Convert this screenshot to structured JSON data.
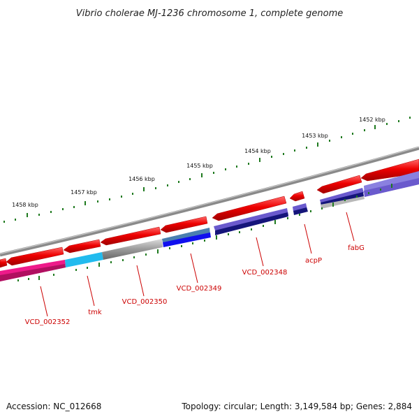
{
  "title": "Vibrio cholerae MJ-1236 chromosome 1, complete genome",
  "scale_labels": [
    "1458 kbp",
    "1457 kbp",
    "1456 kbp",
    "1455 kbp",
    "1454 kbp",
    "1453 kbp",
    "1452 kbp"
  ],
  "gene_labels": [
    "VCD_002352",
    "tmk",
    "VCD_002350",
    "VCD_002349",
    "VCD_002348",
    "acpP",
    "fabG"
  ],
  "footer": {
    "accession": "Accession: NC_012668",
    "stats": "Topology: circular; Length: 3,149,584 bp; Genes: 2,884"
  },
  "colors": {
    "backbone": "#8a8a8a",
    "cds_red": "#ee0000",
    "ticks": "#1f7a1f",
    "label": "#cc0000",
    "cog_magenta": "#ee1a8a",
    "cog_cyan": "#22bbee",
    "cog_gray": "#b8b8b8",
    "cog_steel": "#4a7fb0",
    "cog_blue": "#1010ee",
    "cog_purple": "#6a5acd",
    "cog_navy": "#15157a",
    "cog_lavender": "#8a80e0"
  }
}
